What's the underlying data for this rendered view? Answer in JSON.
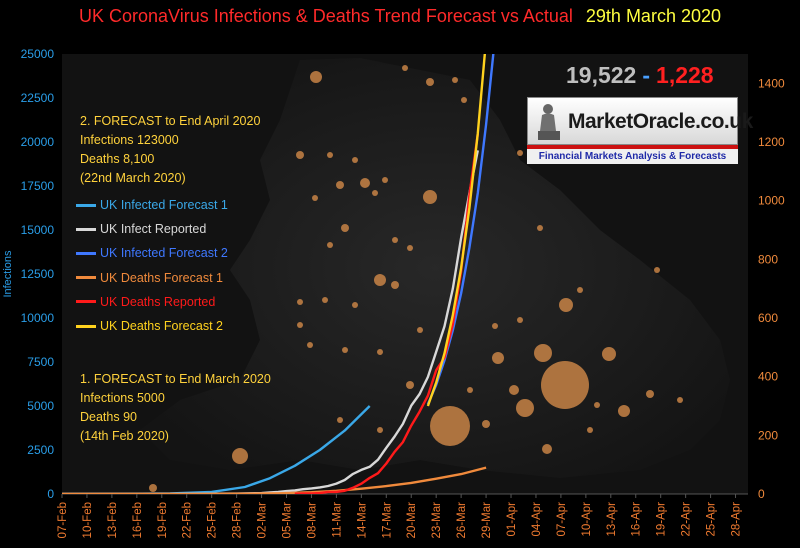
{
  "title": {
    "main": "UK CoronaVirus Infections & Deaths Trend Forecast vs Actual",
    "date": "29th March 2020"
  },
  "counter": {
    "infections": "19,522",
    "separator": "-",
    "deaths": "1,228"
  },
  "logo": {
    "brand": "MarketOracle.co.uk",
    "tagline": "Financial Markets Analysis & Forecasts"
  },
  "forecast2": {
    "heading": "2. FORECAST to End April 2020",
    "infections": "Infections  123000",
    "deaths": "Deaths 8,100",
    "date": "(22nd March 2020)"
  },
  "forecast1": {
    "heading": "1. FORECAST to End March 2020",
    "infections": "Infections  5000",
    "deaths": "Deaths 90",
    "date": "(14th Feb 2020)"
  },
  "legend": [
    {
      "label": "UK Infected Forecast 1",
      "color": "#3aa8e8"
    },
    {
      "label": "UK Infect Reported",
      "color": "#d8d8d8"
    },
    {
      "label": "UK Infected Forecast 2",
      "color": "#3f78ff"
    },
    {
      "label": "UK Deaths Forecast 1",
      "color": "#f08a3c"
    },
    {
      "label": "UK Deaths Reported",
      "color": "#ff1a1a"
    },
    {
      "label": "UK Deaths Forecast 2",
      "color": "#ffd21e"
    }
  ],
  "chart_data": {
    "type": "line",
    "title": "UK CoronaVirus Infections & Deaths Trend Forecast vs Actual",
    "ylabel": "Infections",
    "ylabel_right": "",
    "ylim": [
      0,
      25000
    ],
    "ylim_right": [
      0,
      1500
    ],
    "yticks": [
      0,
      2500,
      5000,
      7500,
      10000,
      12500,
      15000,
      17500,
      20000,
      22500,
      25000
    ],
    "yticks_right": [
      0,
      200,
      400,
      600,
      800,
      1000,
      1200,
      1400
    ],
    "categories": [
      "07-Feb",
      "10-Feb",
      "13-Feb",
      "16-Feb",
      "19-Feb",
      "22-Feb",
      "25-Feb",
      "28-Feb",
      "02-Mar",
      "05-Mar",
      "08-Mar",
      "11-Mar",
      "14-Mar",
      "17-Mar",
      "20-Mar",
      "23-Mar",
      "26-Mar",
      "29-Mar",
      "01-Apr",
      "04-Apr",
      "07-Apr",
      "10-Apr",
      "13-Apr",
      "16-Apr",
      "19-Apr",
      "22-Apr",
      "25-Apr",
      "28-Apr"
    ],
    "series": [
      {
        "name": "UK Infected Forecast 1",
        "axis": "left",
        "color": "#3aa8e8",
        "points": [
          [
            0,
            0
          ],
          [
            7,
            5
          ],
          [
            13,
            30
          ],
          [
            18,
            120
          ],
          [
            22,
            400
          ],
          [
            25,
            900
          ],
          [
            28,
            1600
          ],
          [
            31,
            2500
          ],
          [
            34,
            3600
          ],
          [
            37,
            5000
          ]
        ]
      },
      {
        "name": "UK Infect Reported",
        "axis": "left",
        "color": "#d8d8d8",
        "points": [
          [
            0,
            3
          ],
          [
            7,
            9
          ],
          [
            14,
            13
          ],
          [
            21,
            23
          ],
          [
            24,
            51
          ],
          [
            25,
            85
          ],
          [
            26,
            116
          ],
          [
            27,
            163
          ],
          [
            28,
            206
          ],
          [
            29,
            273
          ],
          [
            30,
            321
          ],
          [
            31,
            373
          ],
          [
            32,
            456
          ],
          [
            33,
            590
          ],
          [
            34,
            798
          ],
          [
            35,
            1140
          ],
          [
            36,
            1372
          ],
          [
            37,
            1543
          ],
          [
            38,
            1950
          ],
          [
            39,
            2626
          ],
          [
            40,
            3269
          ],
          [
            41,
            3983
          ],
          [
            42,
            5018
          ],
          [
            43,
            5683
          ],
          [
            44,
            6650
          ],
          [
            45,
            8077
          ],
          [
            46,
            9529
          ],
          [
            47,
            11658
          ],
          [
            48,
            14543
          ],
          [
            49,
            17089
          ],
          [
            50,
            19522
          ]
        ]
      },
      {
        "name": "UK Infected Forecast 2",
        "axis": "left",
        "color": "#3f78ff",
        "points": [
          [
            44,
            5100
          ],
          [
            45,
            6200
          ],
          [
            46,
            7600
          ],
          [
            47,
            9300
          ],
          [
            48,
            11400
          ],
          [
            49,
            14000
          ],
          [
            50,
            17100
          ],
          [
            51,
            21000
          ],
          [
            52,
            25600
          ]
        ]
      },
      {
        "name": "UK Deaths Forecast 1",
        "axis": "right",
        "color": "#f08a3c",
        "points": [
          [
            0,
            0
          ],
          [
            15,
            0.2
          ],
          [
            22,
            1
          ],
          [
            26,
            2.5
          ],
          [
            30,
            6
          ],
          [
            33,
            11
          ],
          [
            36,
            18
          ],
          [
            39,
            27
          ],
          [
            42,
            38
          ],
          [
            45,
            52
          ],
          [
            48,
            68
          ],
          [
            51,
            90
          ]
        ]
      },
      {
        "name": "UK Deaths Reported",
        "axis": "right",
        "color": "#ff1a1a",
        "points": [
          [
            28,
            1
          ],
          [
            29,
            2
          ],
          [
            30,
            2
          ],
          [
            31,
            3
          ],
          [
            32,
            7
          ],
          [
            33,
            7
          ],
          [
            34,
            11
          ],
          [
            35,
            21
          ],
          [
            36,
            35
          ],
          [
            37,
            55
          ],
          [
            38,
            71
          ],
          [
            39,
            104
          ],
          [
            40,
            144
          ],
          [
            41,
            177
          ],
          [
            42,
            233
          ],
          [
            43,
            281
          ],
          [
            44,
            335
          ],
          [
            45,
            422
          ],
          [
            46,
            465
          ],
          [
            47,
            578
          ],
          [
            48,
            759
          ],
          [
            49,
            1019
          ],
          [
            50,
            1228
          ]
        ]
      },
      {
        "name": "UK Deaths Forecast 2",
        "axis": "right",
        "color": "#ffd21e",
        "points": [
          [
            44,
            300
          ],
          [
            45,
            380
          ],
          [
            46,
            480
          ],
          [
            47,
            610
          ],
          [
            48,
            770
          ],
          [
            49,
            975
          ],
          [
            50,
            1230
          ],
          [
            51,
            1550
          ]
        ]
      }
    ]
  }
}
